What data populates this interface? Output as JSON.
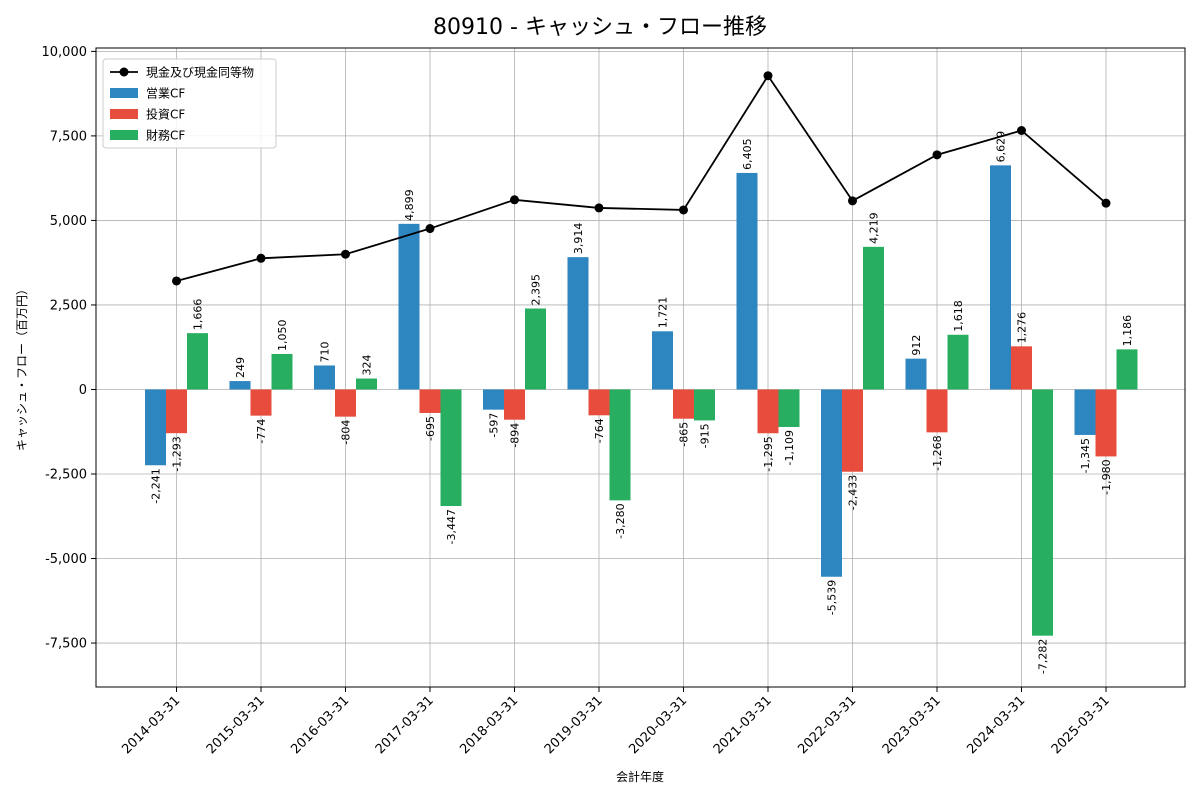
{
  "chart_data": {
    "type": "bar",
    "title": "80910 - キャッシュ・フロー推移",
    "xlabel": "会計年度",
    "ylabel": "キャッシュ・フロー（百万円）",
    "ylim": [
      -8800,
      10100
    ],
    "yticks": [
      10000,
      7500,
      5000,
      2500,
      0,
      -2500,
      -5000,
      -7500
    ],
    "ytick_labels": [
      "10,000",
      "7,500",
      "5,000",
      "2,500",
      "0",
      "-2,500",
      "-5,000",
      "-7,500"
    ],
    "grid": true,
    "legend_position": "top-left",
    "categories": [
      "2014-03-31",
      "2015-03-31",
      "2016-03-31",
      "2017-03-31",
      "2018-03-31",
      "2019-03-31",
      "2020-03-31",
      "2021-03-31",
      "2022-03-31",
      "2023-03-31",
      "2024-03-31",
      "2025-03-31"
    ],
    "series": [
      {
        "name": "営業CF",
        "kind": "bar",
        "color": "#2e86c1",
        "values": [
          -2241,
          249,
          710,
          4899,
          -597,
          3914,
          1721,
          6405,
          -5539,
          912,
          6629,
          -1345
        ],
        "labels": [
          "-2,241",
          "249",
          "710",
          "4,899",
          "-597",
          "3,914",
          "1,721",
          "6,405",
          "-5,539",
          "912",
          "6,629",
          "-1,345"
        ]
      },
      {
        "name": "投資CF",
        "kind": "bar",
        "color": "#e74c3c",
        "values": [
          -1293,
          -774,
          -804,
          -695,
          -894,
          -764,
          -865,
          -1295,
          -2433,
          -1268,
          1276,
          -1980
        ],
        "labels": [
          "-1,293",
          "-774",
          "-804",
          "-695",
          "-894",
          "-764",
          "-865",
          "-1,295",
          "-2,433",
          "-1,268",
          "1,276",
          "-1,980"
        ]
      },
      {
        "name": "財務CF",
        "kind": "bar",
        "color": "#27ae60",
        "values": [
          1666,
          1050,
          324,
          -3447,
          2395,
          -3280,
          -915,
          -1109,
          4219,
          1618,
          -7282,
          1186
        ],
        "labels": [
          "1,666",
          "1,050",
          "324",
          "-3,447",
          "2,395",
          "-3,280",
          "-915",
          "-1,109",
          "4,219",
          "1,618",
          "-7,282",
          "1,186"
        ]
      },
      {
        "name": "現金及び現金同等物",
        "kind": "line",
        "color": "#000000",
        "values": [
          3210,
          3880,
          4000,
          4760,
          5610,
          5370,
          5310,
          9280,
          5580,
          6940,
          7660,
          5510
        ]
      }
    ]
  }
}
